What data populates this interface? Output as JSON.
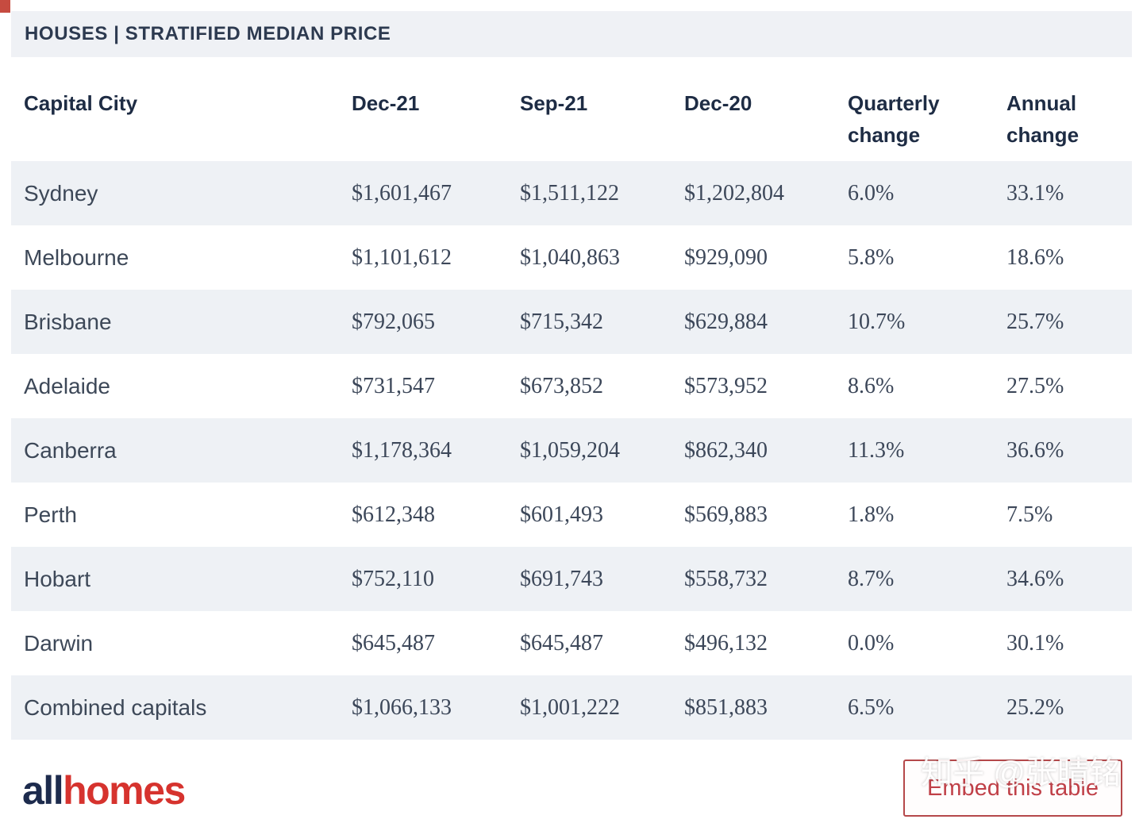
{
  "header": {
    "title": "HOUSES | STRATIFIED MEDIAN PRICE"
  },
  "table": {
    "columns": [
      "Capital City",
      "Dec-21",
      "Sep-21",
      "Dec-20",
      "Quarterly change",
      "Annual change"
    ],
    "rows": [
      {
        "city": "Sydney",
        "dec21": "$1,601,467",
        "sep21": "$1,511,122",
        "dec20": "$1,202,804",
        "quarterly": "6.0%",
        "annual": "33.1%"
      },
      {
        "city": "Melbourne",
        "dec21": "$1,101,612",
        "sep21": "$1,040,863",
        "dec20": "$929,090",
        "quarterly": "5.8%",
        "annual": "18.6%"
      },
      {
        "city": "Brisbane",
        "dec21": "$792,065",
        "sep21": "$715,342",
        "dec20": "$629,884",
        "quarterly": "10.7%",
        "annual": "25.7%"
      },
      {
        "city": "Adelaide",
        "dec21": "$731,547",
        "sep21": "$673,852",
        "dec20": "$573,952",
        "quarterly": "8.6%",
        "annual": "27.5%"
      },
      {
        "city": "Canberra",
        "dec21": "$1,178,364",
        "sep21": "$1,059,204",
        "dec20": "$862,340",
        "quarterly": "11.3%",
        "annual": "36.6%"
      },
      {
        "city": "Perth",
        "dec21": "$612,348",
        "sep21": "$601,493",
        "dec20": "$569,883",
        "quarterly": "1.8%",
        "annual": "7.5%"
      },
      {
        "city": "Hobart",
        "dec21": "$752,110",
        "sep21": "$691,743",
        "dec20": "$558,732",
        "quarterly": "8.7%",
        "annual": "34.6%"
      },
      {
        "city": "Darwin",
        "dec21": "$645,487",
        "sep21": "$645,487",
        "dec20": "$496,132",
        "quarterly": "0.0%",
        "annual": "30.1%"
      },
      {
        "city": "Combined capitals",
        "dec21": "$1,066,133",
        "sep21": "$1,001,222",
        "dec20": "$851,883",
        "quarterly": "6.5%",
        "annual": "25.2%"
      }
    ]
  },
  "footer": {
    "logo_all": "all",
    "logo_homes": "homes",
    "embed_button_label": "Embed this table",
    "watermark": "知乎 @张晴铭"
  },
  "colors": {
    "corner_mark_red": "#c64b40",
    "title_band_bg": "#eff1f5",
    "row_stripe": "#eef1f5",
    "header_text": "#1e2c44",
    "body_text": "#3c4759",
    "logo_navy": "#1d2b4d",
    "logo_red": "#d6332e",
    "embed_button_red": "#b5484a"
  }
}
